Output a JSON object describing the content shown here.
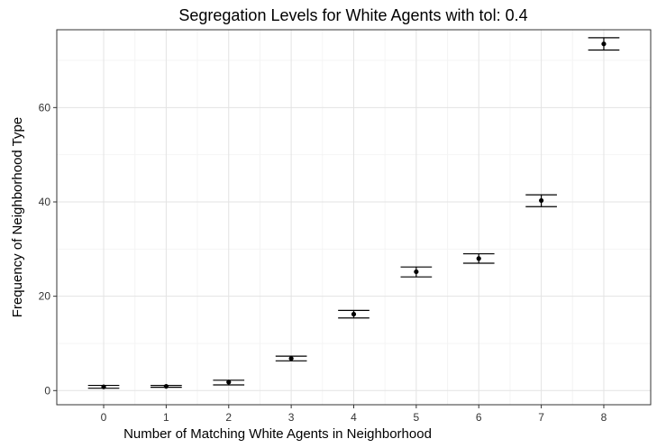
{
  "chart_data": {
    "type": "scatter",
    "title": "Segregation Levels for White Agents with tol: 0.4",
    "xlabel": "Number of Matching White Agents in Neighborhood",
    "ylabel": "Frequency of Neighborhood Type",
    "x": [
      0,
      1,
      2,
      3,
      4,
      5,
      6,
      7,
      8
    ],
    "x_tick_labels": [
      "0",
      "1",
      "2",
      "3",
      "4",
      "5",
      "6",
      "7",
      "8"
    ],
    "y_ticks": [
      0,
      20,
      40,
      60
    ],
    "y_tick_labels": [
      "0",
      "20",
      "40",
      "60"
    ],
    "xlim": [
      -0.75,
      8.75
    ],
    "ylim": [
      -3.0,
      76.5
    ],
    "grid": true,
    "legend": "none",
    "series": [
      {
        "values": [
          0.8,
          0.9,
          1.8,
          6.8,
          16.2,
          25.2,
          28.0,
          40.3,
          73.5
        ],
        "err_low": [
          0.5,
          0.7,
          1.2,
          6.3,
          15.4,
          24.1,
          27.0,
          39.0,
          72.2
        ],
        "err_high": [
          1.1,
          1.1,
          2.2,
          7.3,
          17.0,
          26.2,
          29.0,
          41.5,
          74.8
        ]
      }
    ]
  }
}
